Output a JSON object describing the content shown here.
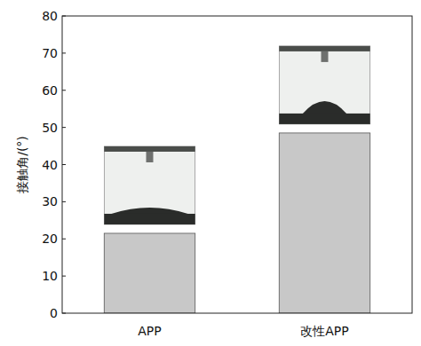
{
  "chart_data": {
    "type": "bar",
    "ylabel": "接触角/(°)",
    "categories": [
      "APP",
      "改性APP"
    ],
    "values": [
      21.5,
      48.5
    ],
    "color": "#c8c8c8",
    "ylim": [
      0,
      80
    ],
    "yticks": [
      0,
      10,
      20,
      30,
      40,
      50,
      60,
      70,
      80
    ],
    "grid": false
  }
}
